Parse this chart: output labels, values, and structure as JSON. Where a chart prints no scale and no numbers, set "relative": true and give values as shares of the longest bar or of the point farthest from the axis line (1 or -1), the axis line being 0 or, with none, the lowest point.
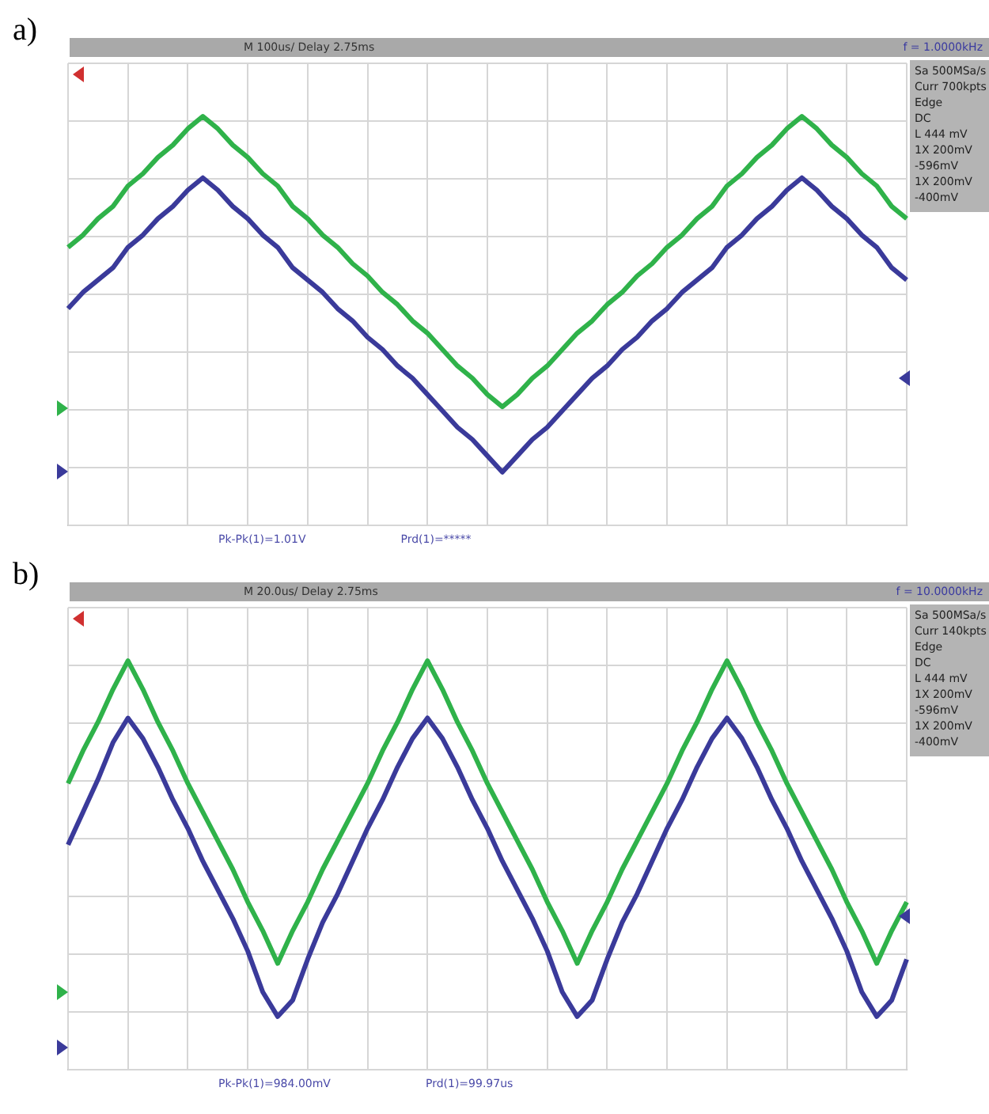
{
  "chart_data": [
    {
      "type": "line",
      "title": "a)",
      "relative": true,
      "grid": true,
      "tick_labels": false,
      "categories": [
        null,
        null,
        null,
        null,
        null,
        null,
        null,
        null,
        null,
        null,
        null,
        null,
        null,
        null,
        null,
        null,
        null,
        null,
        null,
        null,
        null,
        null,
        null,
        null,
        null,
        null,
        null,
        null,
        null,
        null,
        null,
        null,
        null,
        null,
        null,
        null,
        null,
        null,
        null,
        null,
        null,
        null,
        null,
        null,
        null,
        null,
        null,
        null,
        null,
        null,
        null,
        null,
        null,
        null,
        null,
        null,
        null
      ],
      "series": [
        {
          "color": "#2fb24a",
          "values": [
            0.68,
            0.71,
            0.75,
            0.78,
            0.83,
            0.86,
            0.9,
            0.93,
            0.97,
            1,
            0.97,
            0.93,
            0.9,
            0.86,
            0.83,
            0.78,
            0.75,
            0.71,
            0.68,
            0.64,
            0.61,
            0.57,
            0.54,
            0.5,
            0.47,
            0.43,
            0.39,
            0.36,
            0.32,
            0.29,
            0.32,
            0.36,
            0.39,
            0.43,
            0.47,
            0.5,
            0.54,
            0.57,
            0.61,
            0.64,
            0.68,
            0.71,
            0.75,
            0.78,
            0.83,
            0.86,
            0.9,
            0.93,
            0.97,
            1,
            0.97,
            0.93,
            0.9,
            0.86,
            0.83,
            0.78,
            0.75
          ]
        },
        {
          "color": "#3a3a9a",
          "values": [
            0.53,
            0.57,
            0.6,
            0.63,
            0.68,
            0.71,
            0.75,
            0.78,
            0.82,
            0.85,
            0.82,
            0.78,
            0.75,
            0.71,
            0.68,
            0.63,
            0.6,
            0.57,
            0.53,
            0.5,
            0.46,
            0.43,
            0.39,
            0.36,
            0.32,
            0.28,
            0.24,
            0.21,
            0.17,
            0.13,
            0.17,
            0.21,
            0.24,
            0.28,
            0.32,
            0.36,
            0.39,
            0.43,
            0.46,
            0.5,
            0.53,
            0.57,
            0.6,
            0.63,
            0.68,
            0.71,
            0.75,
            0.78,
            0.82,
            0.85,
            0.82,
            0.78,
            0.75,
            0.71,
            0.68,
            0.63,
            0.6
          ]
        }
      ],
      "annotations": [
        "M 100us/  Delay 2.75ms",
        "f = 1.0000kHz",
        "Sa 500MSa/s",
        "Curr 700kpts",
        "Edge",
        "DC",
        "L  444 mV",
        "1X  200mV",
        "-596mV",
        "1X  200mV",
        "-400mV",
        "Pk-Pk(1)=1.01V",
        "Prd(1)=*****"
      ]
    },
    {
      "type": "line",
      "title": "b)",
      "relative": true,
      "grid": true,
      "tick_labels": false,
      "categories": [
        null,
        null,
        null,
        null,
        null,
        null,
        null,
        null,
        null,
        null,
        null,
        null,
        null,
        null,
        null,
        null,
        null,
        null,
        null,
        null,
        null,
        null,
        null,
        null,
        null,
        null,
        null,
        null,
        null,
        null,
        null,
        null,
        null,
        null,
        null,
        null,
        null,
        null,
        null,
        null,
        null,
        null,
        null,
        null,
        null,
        null,
        null,
        null,
        null,
        null,
        null,
        null,
        null,
        null,
        null,
        null,
        null
      ],
      "series": [
        {
          "color": "#2fb24a",
          "values": [
            0.7,
            0.78,
            0.85,
            0.93,
            1,
            0.93,
            0.85,
            0.78,
            0.7,
            0.63,
            0.56,
            0.49,
            0.41,
            0.34,
            0.26,
            0.34,
            0.41,
            0.49,
            0.56,
            0.63,
            0.7,
            0.78,
            0.85,
            0.93,
            1,
            0.93,
            0.85,
            0.78,
            0.7,
            0.63,
            0.56,
            0.49,
            0.41,
            0.34,
            0.26,
            0.34,
            0.41,
            0.49,
            0.56,
            0.63,
            0.7,
            0.78,
            0.85,
            0.93,
            1,
            0.93,
            0.85,
            0.78,
            0.7,
            0.63,
            0.56,
            0.49,
            0.41,
            0.34,
            0.26,
            0.34,
            0.41
          ]
        },
        {
          "color": "#3a3a9a",
          "values": [
            0.55,
            0.63,
            0.71,
            0.8,
            0.86,
            0.81,
            0.74,
            0.66,
            0.59,
            0.51,
            0.44,
            0.37,
            0.29,
            0.19,
            0.13,
            0.17,
            0.27,
            0.36,
            0.43,
            0.51,
            0.59,
            0.66,
            0.74,
            0.81,
            0.86,
            0.81,
            0.74,
            0.66,
            0.59,
            0.51,
            0.44,
            0.37,
            0.29,
            0.19,
            0.13,
            0.17,
            0.27,
            0.36,
            0.43,
            0.51,
            0.59,
            0.66,
            0.74,
            0.81,
            0.86,
            0.81,
            0.74,
            0.66,
            0.59,
            0.51,
            0.44,
            0.37,
            0.29,
            0.19,
            0.13,
            0.17,
            0.27
          ]
        }
      ],
      "annotations": [
        "M 20.0us/  Delay 2.75ms",
        "f = 10.0000kHz",
        "Sa 500MSa/s",
        "Curr 140kpts",
        "Edge",
        "DC",
        "L  444 mV",
        "1X  200mV",
        "-596mV",
        "1X  200mV",
        "-400mV",
        "Pk-Pk(1)=984.00mV",
        "Prd(1)=99.97us"
      ]
    }
  ]
}
